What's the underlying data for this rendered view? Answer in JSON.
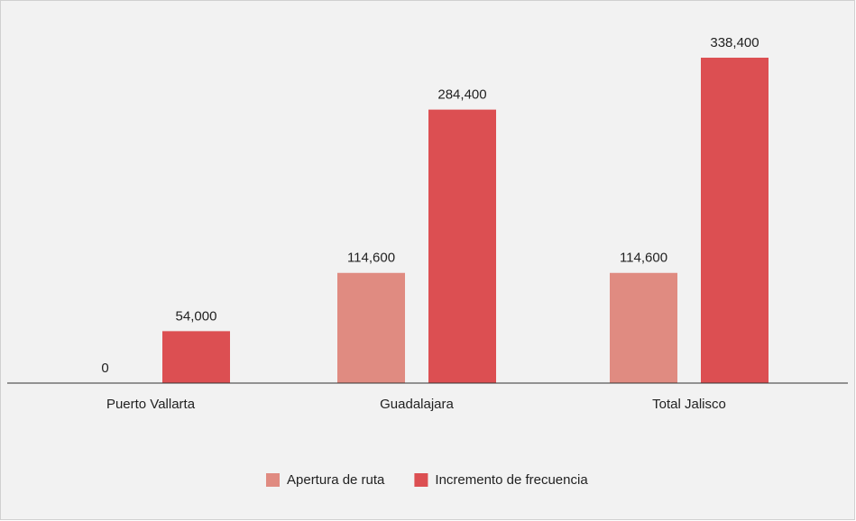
{
  "chart_data": {
    "type": "bar",
    "categories": [
      "Puerto Vallarta",
      "Guadalajara",
      "Total Jalisco"
    ],
    "series": [
      {
        "name": "Apertura de ruta",
        "color": "#e08b81",
        "values": [
          0,
          114600,
          114600
        ],
        "value_labels": [
          "0",
          "114,600",
          "114,600"
        ]
      },
      {
        "name": "Incremento de frecuencia",
        "color": "#dc4f52",
        "values": [
          54000,
          284400,
          338400
        ],
        "value_labels": [
          "54,000",
          "284,400",
          "338,400"
        ]
      }
    ],
    "legend": "bottom"
  }
}
